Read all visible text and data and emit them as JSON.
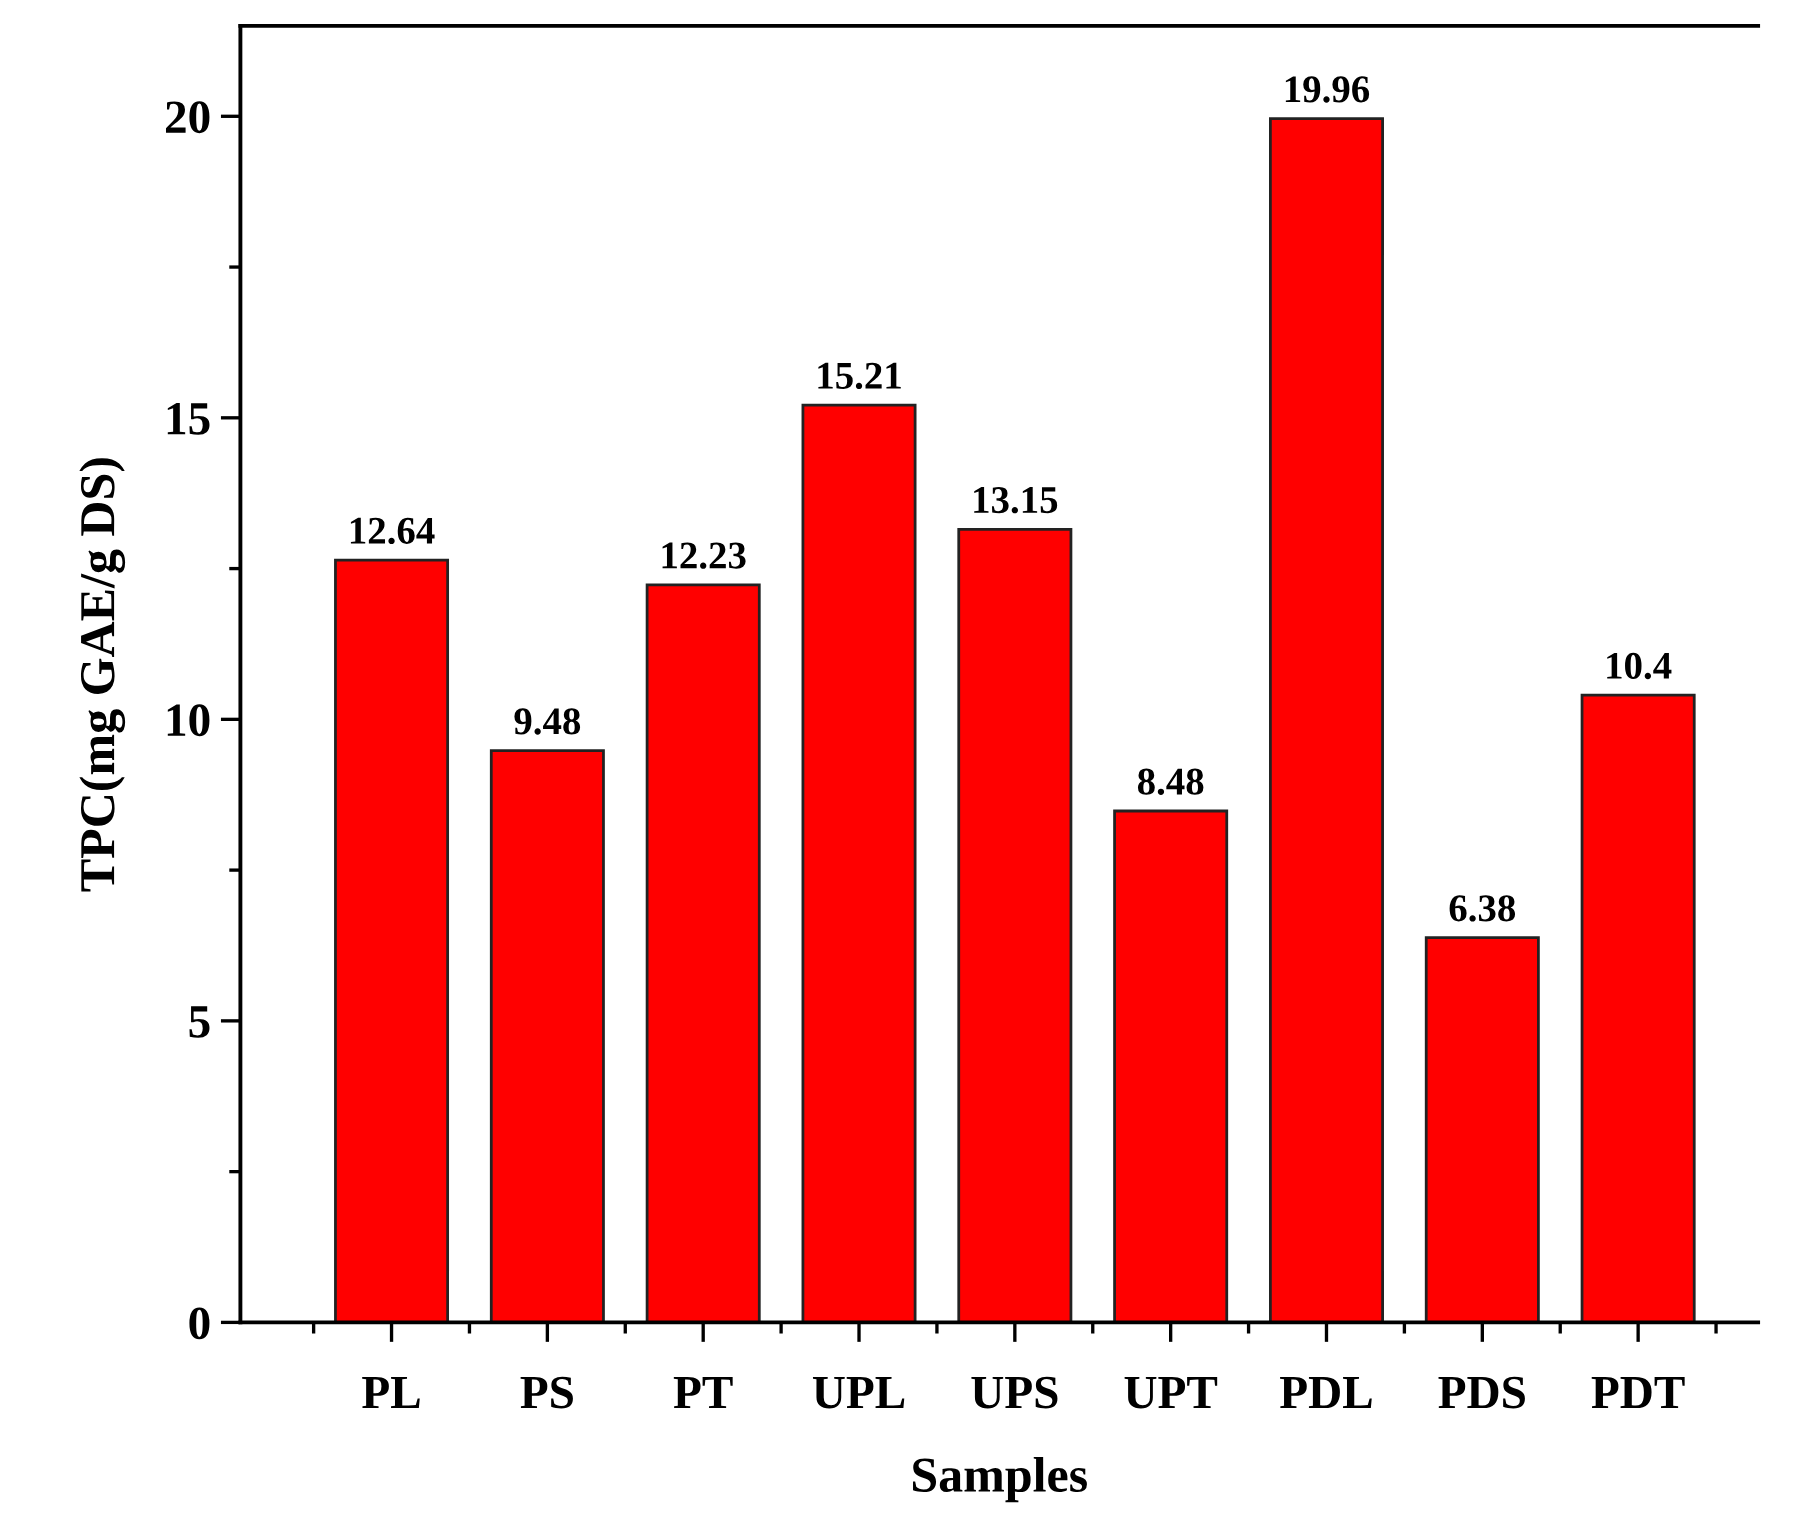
{
  "chart_data": {
    "type": "bar",
    "xlabel": "Samples",
    "ylabel": "TPC(mg GAE/g DS)",
    "categories": [
      "PL",
      "PS",
      "PT",
      "UPL",
      "UPS",
      "UPT",
      "PDL",
      "PDS",
      "PDT"
    ],
    "values": [
      12.64,
      9.48,
      12.23,
      15.21,
      13.15,
      8.48,
      19.96,
      6.38,
      10.4
    ],
    "value_labels": [
      "12.64",
      "9.48",
      "12.23",
      "15.21",
      "13.15",
      "8.48",
      "19.96",
      "6.38",
      "10.4"
    ],
    "color": "#ff0000",
    "ylim": [
      0,
      21.5
    ],
    "yticks": [
      0,
      5,
      10,
      15,
      20
    ],
    "grid": false,
    "legend": false
  }
}
